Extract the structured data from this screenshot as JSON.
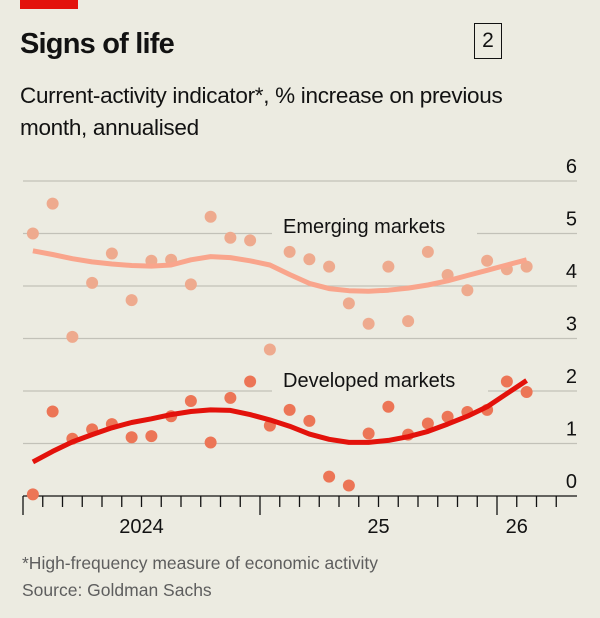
{
  "header": {
    "title": "Signs of life",
    "chart_number": "2",
    "subtitle": "Current-activity indicator*, % increase on previous month, annualised"
  },
  "footer": {
    "note": "*High-frequency measure of economic activity",
    "source": "Source: Goldman Sachs"
  },
  "colors": {
    "accent": "#e3120b",
    "emerging_line": "#f9a58c",
    "emerging_dots": "#eeaa8e",
    "developed_line": "#e3120b",
    "developed_dots": "#ec7556",
    "background": "#ecebe1"
  },
  "chart_data": {
    "type": "scatter",
    "title": "Signs of life",
    "x_start": "2024-01",
    "x_end": "2026-02",
    "x_frequency": "monthly",
    "x_tick_labels": [
      "2024",
      "25",
      "26"
    ],
    "ylim": [
      0,
      6
    ],
    "y_ticks": [
      0,
      1,
      2,
      3,
      4,
      5,
      6
    ],
    "y_axis_side": "right",
    "grid": true,
    "series": [
      {
        "name": "Emerging markets",
        "values": [
          5.0,
          5.57,
          3.03,
          4.06,
          4.62,
          3.73,
          4.48,
          4.5,
          4.03,
          5.32,
          4.92,
          4.87,
          2.79,
          4.65,
          4.51,
          4.37,
          3.67,
          3.28,
          4.37,
          3.33,
          4.65,
          4.21,
          3.92,
          4.48,
          4.32,
          4.37
        ],
        "trend": [
          4.67,
          4.6,
          4.52,
          4.46,
          4.42,
          4.39,
          4.38,
          4.4,
          4.5,
          4.56,
          4.54,
          4.48,
          4.4,
          4.22,
          4.05,
          3.95,
          3.91,
          3.9,
          3.92,
          3.96,
          4.02,
          4.1,
          4.2,
          4.3,
          4.4,
          4.5
        ]
      },
      {
        "name": "Developed markets",
        "values": [
          0.03,
          1.61,
          1.09,
          1.27,
          1.37,
          1.12,
          1.14,
          1.52,
          1.81,
          1.02,
          1.87,
          2.18,
          1.34,
          1.64,
          1.43,
          0.37,
          0.2,
          1.19,
          1.7,
          1.17,
          1.38,
          1.51,
          1.6,
          1.64,
          2.18,
          1.98
        ],
        "trend": [
          0.65,
          0.85,
          1.03,
          1.17,
          1.3,
          1.4,
          1.47,
          1.55,
          1.61,
          1.64,
          1.63,
          1.55,
          1.45,
          1.33,
          1.18,
          1.08,
          1.02,
          1.02,
          1.06,
          1.13,
          1.23,
          1.37,
          1.52,
          1.7,
          1.95,
          2.2
        ]
      }
    ]
  }
}
